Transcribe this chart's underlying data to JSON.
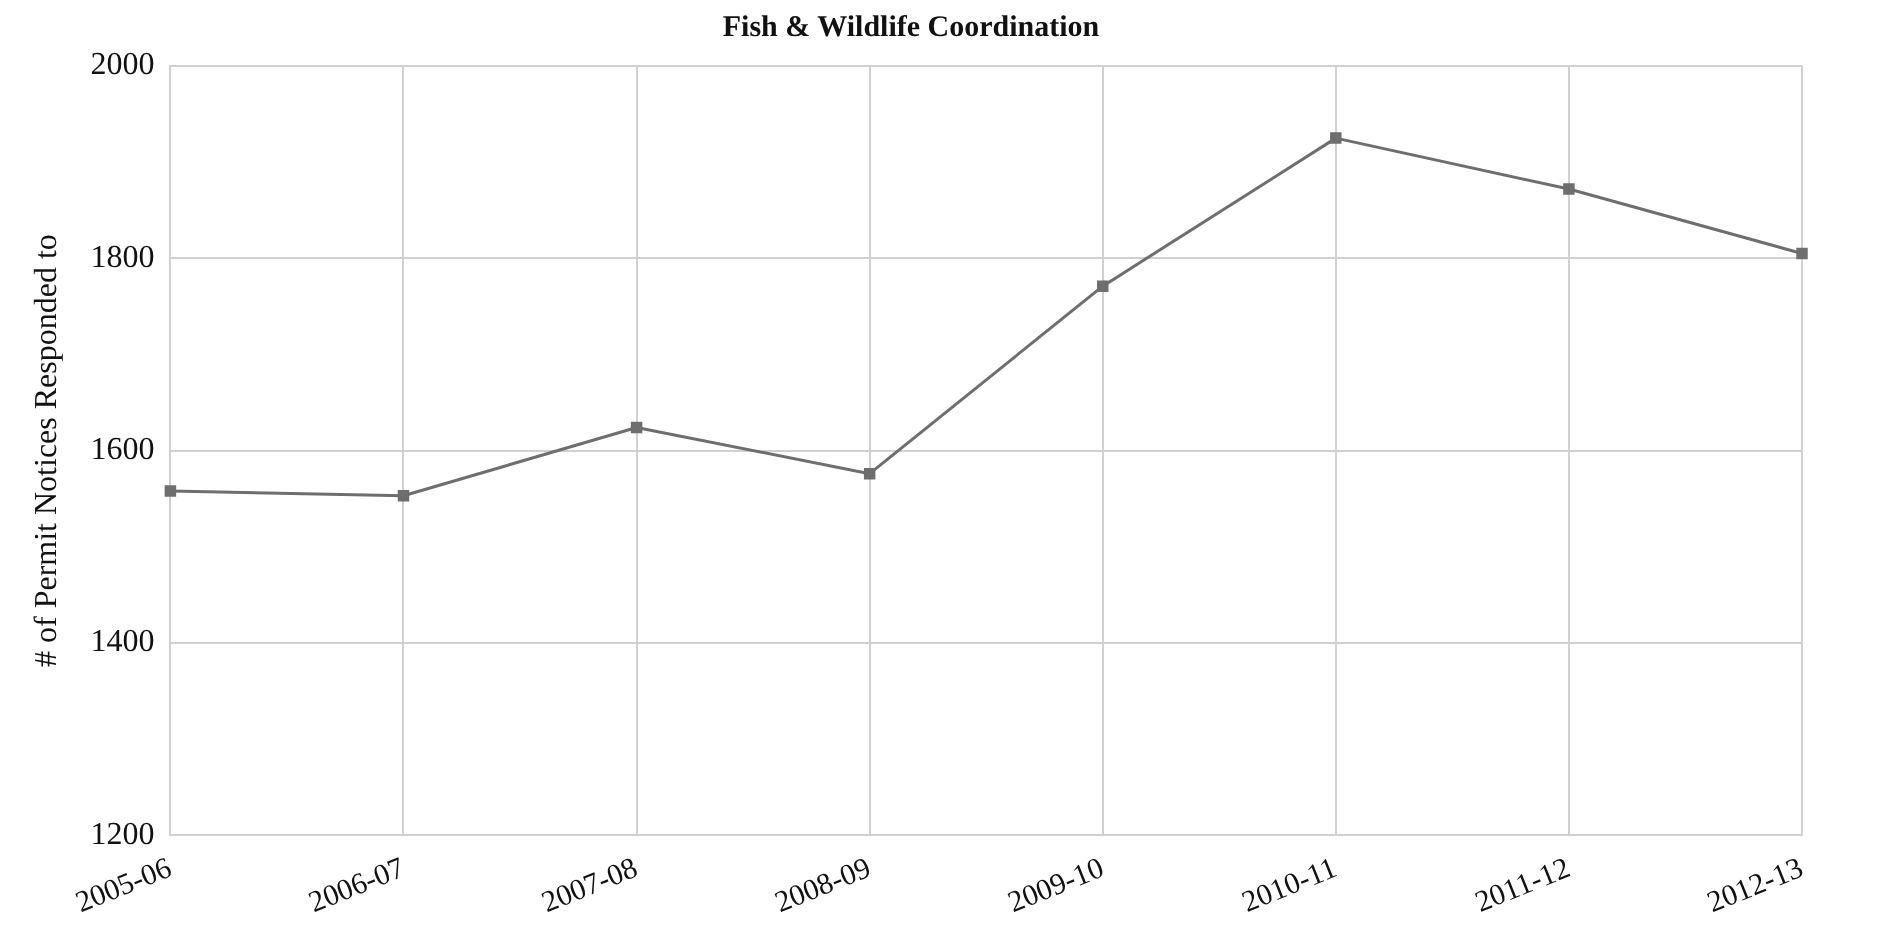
{
  "chart_data": {
    "type": "line",
    "title": "Fish & Wildlife Coordination",
    "ylabel": "# of Permit Notices Responded to",
    "categories": [
      "2005-06",
      "2006-07",
      "2007-08",
      "2008-09",
      "2009-10",
      "2010-11",
      "2011-12",
      "2012-13"
    ],
    "series": [
      {
        "color": "#6e6e6e",
        "values": [
          1558,
          1553,
          1624,
          1576,
          1771,
          1925,
          1872,
          1805
        ]
      }
    ],
    "ylim": [
      1200,
      2000
    ],
    "yticks": [
      1200,
      1400,
      1600,
      1800,
      2000
    ],
    "grid": true,
    "legend": false,
    "marker": "square",
    "line_style": "solid"
  }
}
